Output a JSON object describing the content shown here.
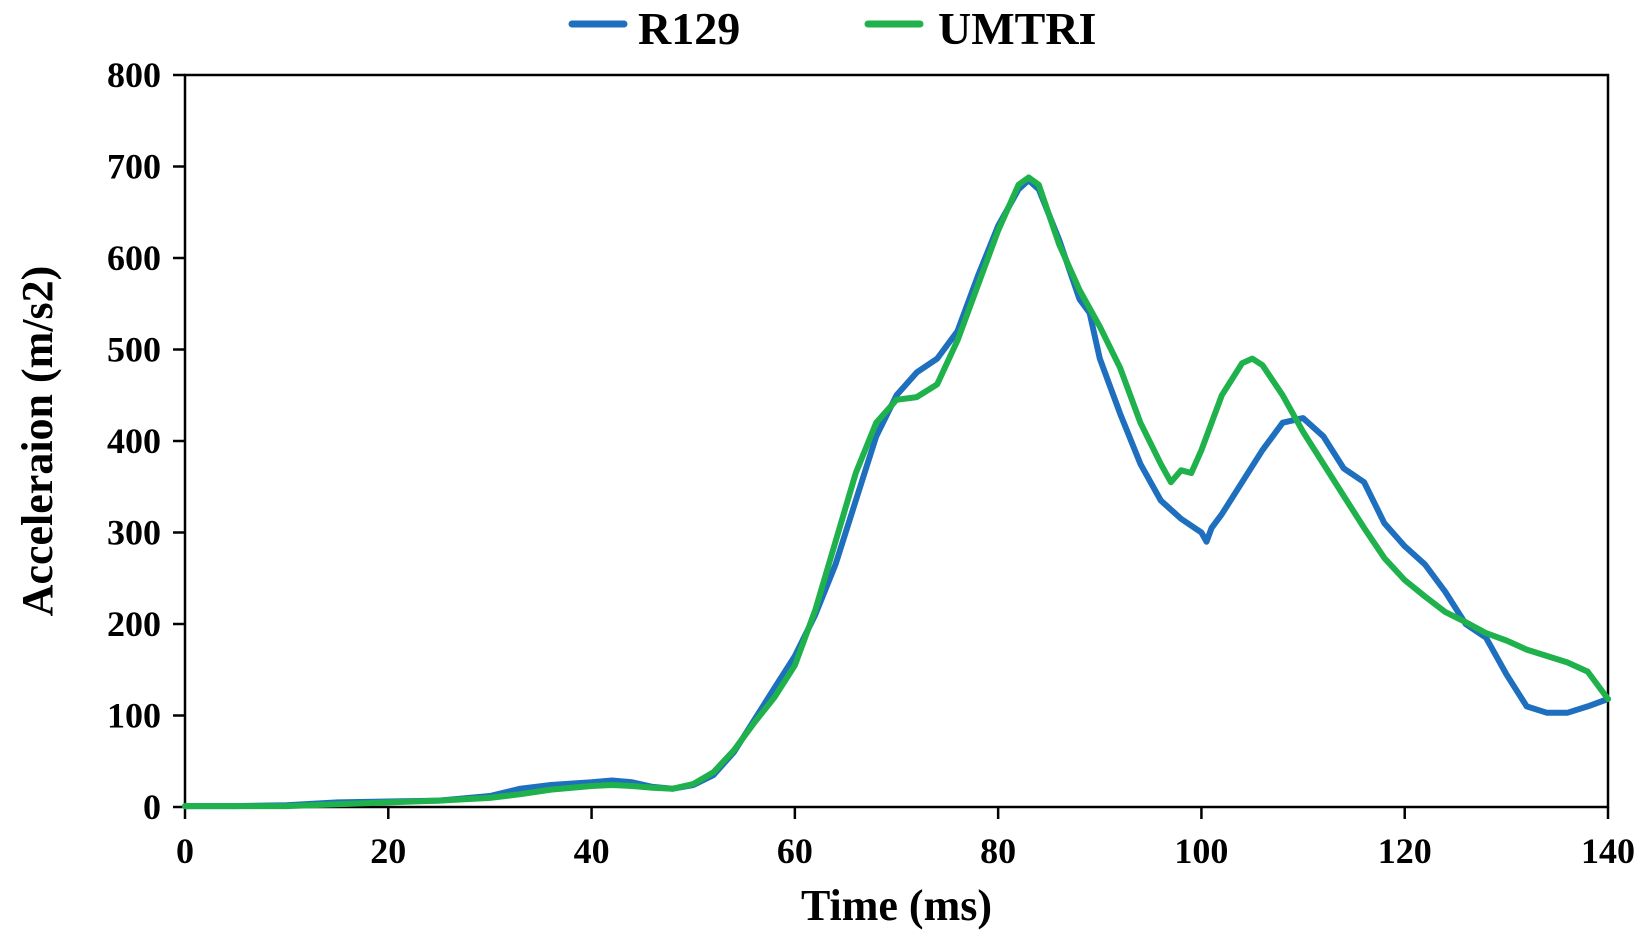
{
  "chart_data": {
    "type": "line",
    "title": "",
    "xlabel": "Time (ms)",
    "ylabel": "Acceleraion (m/s2)",
    "xlim": [
      0,
      140
    ],
    "ylim": [
      0,
      800
    ],
    "xticks": [
      "0",
      "20",
      "40",
      "60",
      "80",
      "100",
      "120",
      "140"
    ],
    "yticks": [
      "0",
      "100",
      "200",
      "300",
      "400",
      "500",
      "600",
      "700",
      "800"
    ],
    "grid": false,
    "legend": "top-center",
    "series": [
      {
        "name": "R129",
        "color": "#1f6fbf",
        "x": [
          0,
          5,
          10,
          15,
          20,
          25,
          30,
          33,
          36,
          40,
          42,
          44,
          46,
          48,
          50,
          52,
          54,
          56,
          58,
          60,
          62,
          64,
          66,
          68,
          70,
          72,
          74,
          76,
          78,
          80,
          82,
          83,
          84,
          86,
          88,
          89,
          90,
          92,
          94,
          96,
          98,
          100,
          100.5,
          101,
          102,
          104,
          106,
          108,
          110,
          112,
          114,
          116,
          118,
          120,
          122,
          124,
          126,
          128,
          130,
          132,
          134,
          136,
          138,
          140
        ],
        "y": [
          1,
          1,
          2,
          5,
          6,
          7,
          12,
          20,
          24,
          27,
          29,
          27,
          22,
          20,
          24,
          35,
          60,
          95,
          130,
          165,
          210,
          265,
          335,
          405,
          450,
          475,
          490,
          520,
          580,
          635,
          675,
          685,
          675,
          620,
          555,
          540,
          490,
          430,
          375,
          335,
          315,
          300,
          290,
          305,
          320,
          355,
          390,
          420,
          425,
          405,
          370,
          355,
          310,
          285,
          265,
          235,
          200,
          185,
          145,
          110,
          103,
          103,
          110,
          118
        ]
      },
      {
        "name": "UMTRI",
        "color": "#1fb14c",
        "x": [
          0,
          5,
          10,
          15,
          20,
          25,
          30,
          33,
          36,
          40,
          42,
          44,
          46,
          48,
          50,
          52,
          54,
          56,
          58,
          60,
          62,
          64,
          66,
          68,
          70,
          72,
          74,
          76,
          78,
          80,
          82,
          83,
          84,
          86,
          88,
          90,
          92,
          94,
          96,
          97,
          98,
          99,
          100,
          102,
          104,
          105,
          106,
          108,
          110,
          112,
          114,
          116,
          118,
          120,
          122,
          124,
          126,
          128,
          130,
          132,
          134,
          136,
          138,
          140
        ],
        "y": [
          1,
          1,
          1,
          3,
          5,
          7,
          10,
          14,
          19,
          23,
          24,
          23,
          21,
          20,
          25,
          38,
          62,
          92,
          120,
          155,
          215,
          290,
          365,
          420,
          445,
          448,
          462,
          510,
          570,
          630,
          680,
          688,
          680,
          615,
          565,
          525,
          480,
          420,
          375,
          355,
          368,
          365,
          390,
          450,
          485,
          490,
          483,
          450,
          410,
          375,
          340,
          305,
          272,
          248,
          230,
          213,
          202,
          190,
          182,
          172,
          165,
          158,
          148,
          118
        ]
      }
    ]
  }
}
